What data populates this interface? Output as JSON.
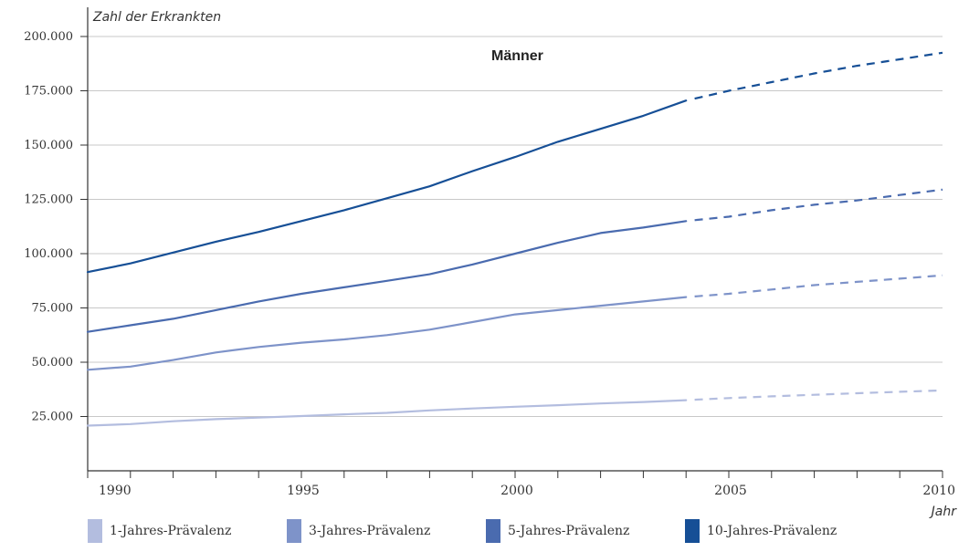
{
  "chart_data": {
    "type": "line",
    "title": "Männer",
    "ylabel": "Zahl der Erkrankten",
    "xlabel": "Jahr",
    "ylim": [
      0,
      200000
    ],
    "xlim": [
      1990,
      2010
    ],
    "y_ticks": [
      {
        "value": 25000,
        "label": "25.000"
      },
      {
        "value": 50000,
        "label": "50.000"
      },
      {
        "value": 75000,
        "label": "75.000"
      },
      {
        "value": 100000,
        "label": "100.000"
      },
      {
        "value": 125000,
        "label": "125.000"
      },
      {
        "value": 150000,
        "label": "150.000"
      },
      {
        "value": 175000,
        "label": "175.000"
      },
      {
        "value": 200000,
        "label": "200.000"
      }
    ],
    "x_ticks": [
      {
        "value": 1990,
        "label": "1990"
      },
      {
        "value": 1995,
        "label": "1995"
      },
      {
        "value": 2000,
        "label": "2000"
      },
      {
        "value": 2005,
        "label": "2005"
      },
      {
        "value": 2010,
        "label": "2010"
      }
    ],
    "grid": true,
    "legend_position": "bottom",
    "observed_until": 2004,
    "series": [
      {
        "name": "1-Jahres-Prävalenz",
        "color": "#b3bddf",
        "x": [
          1990,
          1991,
          1992,
          1993,
          1994,
          1995,
          1996,
          1997,
          1998,
          1999,
          2000,
          2001,
          2002,
          2003,
          2004,
          2005,
          2006,
          2007,
          2008,
          2009,
          2010
        ],
        "values": [
          20800,
          21500,
          22800,
          23800,
          24500,
          25200,
          26000,
          26700,
          27800,
          28700,
          29500,
          30200,
          31000,
          31700,
          32500,
          33500,
          34300,
          35000,
          35700,
          36400,
          37000
        ]
      },
      {
        "name": "3-Jahres-Prävalenz",
        "color": "#7e93c9",
        "x": [
          1990,
          1991,
          1992,
          1993,
          1994,
          1995,
          1996,
          1997,
          1998,
          1999,
          2000,
          2001,
          2002,
          2003,
          2004,
          2005,
          2006,
          2007,
          2008,
          2009,
          2010
        ],
        "values": [
          46500,
          48000,
          51000,
          54500,
          57000,
          59000,
          60500,
          62500,
          65000,
          68500,
          72000,
          74000,
          76000,
          78000,
          80000,
          81500,
          83500,
          85500,
          87000,
          88500,
          90000
        ]
      },
      {
        "name": "5-Jahres-Prävalenz",
        "color": "#4a6baf",
        "x": [
          1990,
          1991,
          1992,
          1993,
          1994,
          1995,
          1996,
          1997,
          1998,
          1999,
          2000,
          2001,
          2002,
          2003,
          2004,
          2005,
          2006,
          2007,
          2008,
          2009,
          2010
        ],
        "values": [
          64000,
          67000,
          70000,
          74000,
          78000,
          81500,
          84500,
          87500,
          90500,
          95000,
          100000,
          105000,
          109500,
          112000,
          115000,
          117000,
          120000,
          122500,
          124500,
          127000,
          129500
        ]
      },
      {
        "name": "10-Jahres-Prävalenz",
        "color": "#164f96",
        "x": [
          1990,
          1991,
          1992,
          1993,
          1994,
          1995,
          1996,
          1997,
          1998,
          1999,
          2000,
          2001,
          2002,
          2003,
          2004,
          2005,
          2006,
          2007,
          2008,
          2009,
          2010
        ],
        "values": [
          91500,
          95500,
          100500,
          105500,
          110000,
          115000,
          120000,
          125500,
          131000,
          138000,
          144500,
          151500,
          157500,
          163500,
          170500,
          175000,
          179000,
          183000,
          186500,
          189500,
          192500
        ]
      }
    ]
  }
}
